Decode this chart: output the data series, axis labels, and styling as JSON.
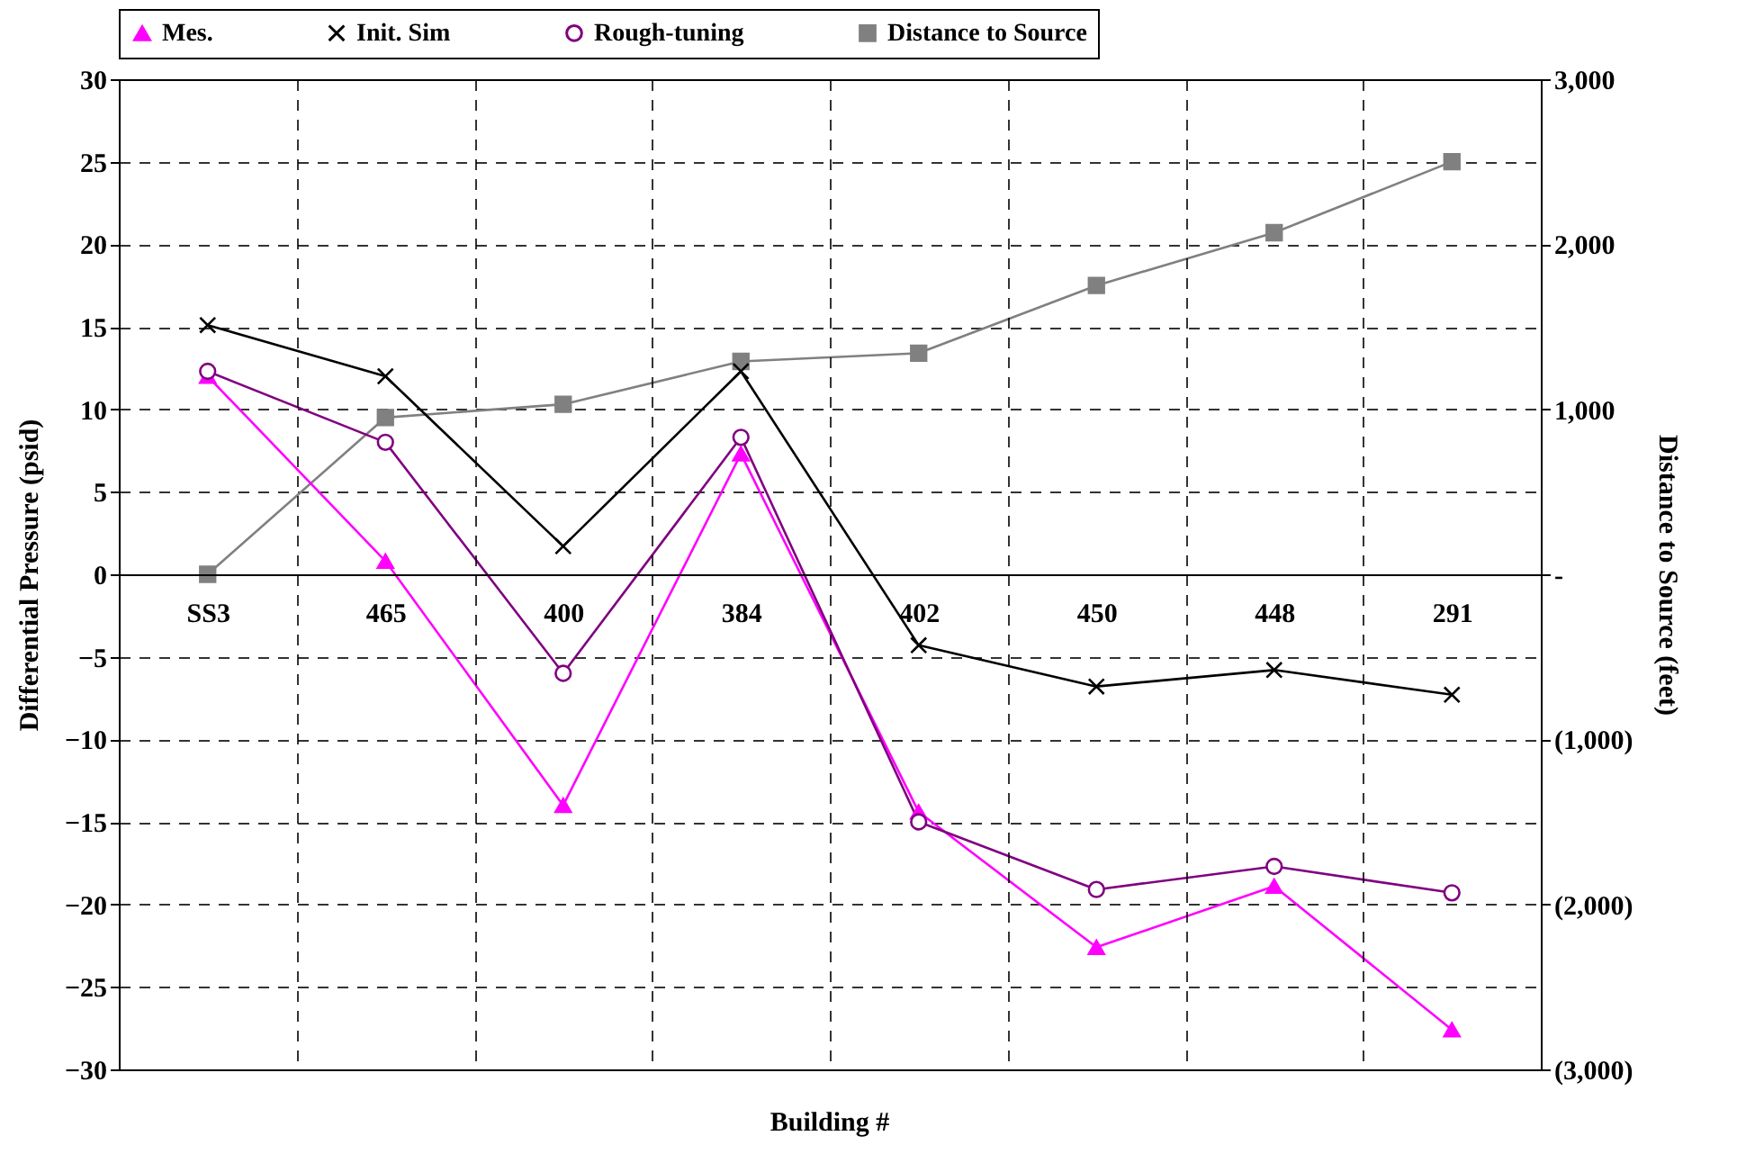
{
  "chart_data": {
    "type": "line",
    "xlabel": "Building #",
    "ylabel": "Differential Pressure (psid)",
    "y2label": "Distance to Source (feet)",
    "categories": [
      "SS3",
      "465",
      "400",
      "384",
      "402",
      "450",
      "448",
      "291"
    ],
    "series": [
      {
        "name": "Mes.",
        "color": "#ff00ff",
        "marker": "triangle",
        "values": [
          12,
          0.8,
          -14,
          7.3,
          -14.4,
          -22.6,
          -18.9,
          -27.6
        ]
      },
      {
        "name": "Init. Sim",
        "color": "#000000",
        "marker": "cross",
        "values": [
          15.1,
          12,
          1.7,
          12.3,
          -4.3,
          -6.8,
          -5.8,
          -7.3
        ]
      },
      {
        "name": "Rough-tuning",
        "color": "#800080",
        "marker": "circle",
        "values": [
          12.3,
          8,
          -6,
          8.3,
          -15,
          -19.1,
          -17.7,
          -19.3
        ]
      },
      {
        "name": "Distance to Source",
        "color": "#808080",
        "marker": "square",
        "axis": "y2",
        "values": [
          0,
          950,
          1030,
          1290,
          1340,
          1750,
          2070,
          2500
        ]
      }
    ],
    "ylim": [
      -30,
      30
    ],
    "yticks": [
      -30,
      -25,
      -20,
      -15,
      -10,
      -5,
      0,
      5,
      10,
      15,
      20,
      25,
      30
    ],
    "y2lim": [
      -3000,
      3000
    ],
    "y2ticks": [
      {
        "value": -3000,
        "label": "(3,000)"
      },
      {
        "value": -2000,
        "label": "(2,000)"
      },
      {
        "value": -1000,
        "label": "(1,000)"
      },
      {
        "value": 0,
        "label": "-"
      },
      {
        "value": 1000,
        "label": "1,000"
      },
      {
        "value": 2000,
        "label": "2,000"
      },
      {
        "value": 3000,
        "label": "3,000"
      }
    ],
    "grid": true,
    "legend": "top"
  }
}
